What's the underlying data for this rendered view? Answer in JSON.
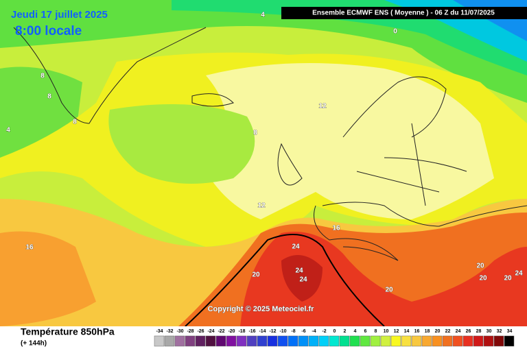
{
  "header": {
    "date": "Jeudi 17 juillet 2025",
    "time": "8:00 locale",
    "model": "Ensemble ECMWF ENS  ( Moyenne )  -  06 Z du 11/07/2025"
  },
  "map": {
    "contour_labels": [
      4,
      0,
      8,
      8,
      8,
      4,
      12,
      8,
      12,
      16,
      16,
      24,
      24,
      24,
      20,
      20,
      20,
      24,
      20,
      20
    ],
    "copyright": "Copyright © 2025 Meteociel.fr"
  },
  "footer": {
    "parameter": "Température 850hPa",
    "lead": "(+ 144h)"
  },
  "legend": {
    "values": [
      -34,
      -32,
      -30,
      -28,
      -26,
      -24,
      -22,
      -20,
      -18,
      -16,
      -14,
      -12,
      -10,
      -8,
      -6,
      -4,
      -2,
      0,
      2,
      4,
      6,
      8,
      10,
      12,
      14,
      16,
      18,
      20,
      22,
      24,
      26,
      28,
      30,
      32,
      34
    ],
    "colors": [
      "#c8c8c8",
      "#a8a8a8",
      "#a070a0",
      "#804080",
      "#602060",
      "#501040",
      "#600870",
      "#8010a0",
      "#8030c0",
      "#5040c0",
      "#3040d0",
      "#1830e0",
      "#1050f0",
      "#0070f8",
      "#0090f8",
      "#00b0f8",
      "#00d0f8",
      "#00e8d0",
      "#00e090",
      "#20e050",
      "#60e840",
      "#a0f040",
      "#d0f040",
      "#f8f820",
      "#f8e040",
      "#f8c840",
      "#f8a830",
      "#f89020",
      "#f07020",
      "#f05020",
      "#e83020",
      "#d01818",
      "#b01010",
      "#800808",
      "#000000"
    ]
  }
}
